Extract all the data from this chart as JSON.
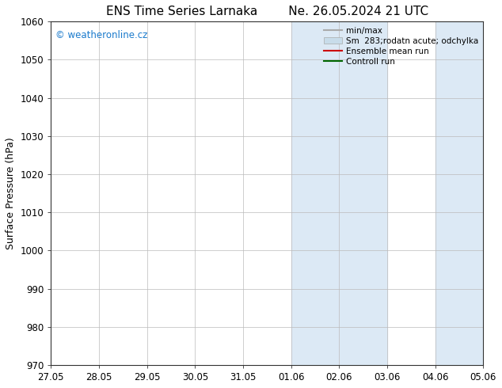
{
  "title_left": "ENS Time Series Larnaka",
  "title_right": "Ne. 26.05.2024 21 UTC",
  "ylabel": "Surface Pressure (hPa)",
  "ylim": [
    970,
    1060
  ],
  "yticks": [
    970,
    980,
    990,
    1000,
    1010,
    1020,
    1030,
    1040,
    1050,
    1060
  ],
  "x_tick_labels": [
    "27.05",
    "28.05",
    "29.05",
    "30.05",
    "31.05",
    "01.06",
    "02.06",
    "03.06",
    "04.06",
    "05.06"
  ],
  "x_tick_positions": [
    0,
    1,
    2,
    3,
    4,
    5,
    6,
    7,
    8,
    9
  ],
  "watermark": "© weatheronline.cz",
  "watermark_color": "#1a7acc",
  "background_color": "#ffffff",
  "plot_bg_color": "#ffffff",
  "shaded_regions": [
    {
      "x_start": 5,
      "x_end": 5.5,
      "color": "#deeaf5"
    },
    {
      "x_start": 5.5,
      "x_end": 6,
      "color": "#ccdded"
    },
    {
      "x_start": 6,
      "x_end": 7,
      "color": "#deeaf5"
    },
    {
      "x_start": 8,
      "x_end": 8.5,
      "color": "#deeaf5"
    },
    {
      "x_start": 8.5,
      "x_end": 9,
      "color": "#ccdded"
    }
  ],
  "shaded_simple": [
    {
      "x_start": 5,
      "x_end": 7,
      "color": "#dce9f5"
    },
    {
      "x_start": 8,
      "x_end": 9,
      "color": "#dce9f5"
    }
  ],
  "legend_entries": [
    {
      "label": "min/max",
      "color": "#aaaaaa",
      "linestyle": "-",
      "linewidth": 1.5,
      "type": "line"
    },
    {
      "label": "Sm  283;rodatn acute; odchylka",
      "color": "#c8dcea",
      "edge_color": "#aaaaaa",
      "type": "patch"
    },
    {
      "label": "Ensemble mean run",
      "color": "#cc0000",
      "linestyle": "-",
      "linewidth": 1.5,
      "type": "line"
    },
    {
      "label": "Controll run",
      "color": "#006600",
      "linestyle": "-",
      "linewidth": 1.5,
      "type": "line"
    }
  ],
  "title_fontsize": 11,
  "axis_fontsize": 9,
  "tick_fontsize": 8.5,
  "legend_fontsize": 7.5
}
